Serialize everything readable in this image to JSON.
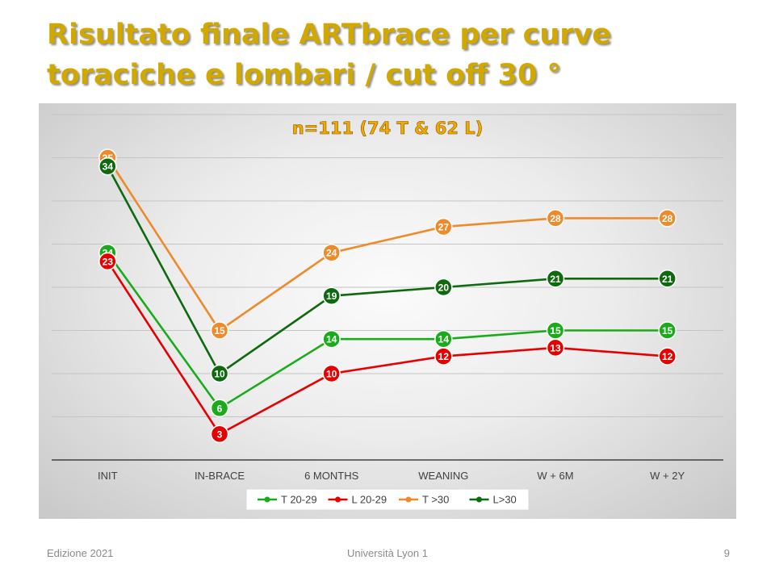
{
  "slide": {
    "title": "Risultato finale ARTbrace per curve toraciche e lombari / cut off 30 °",
    "footer_left": "Edizione 2021",
    "footer_center": "Università Lyon 1",
    "footer_right": "9"
  },
  "chart_data": {
    "type": "line",
    "title": "n=111 (74 T & 62 L)",
    "title_color": "#f5a800",
    "categories": [
      "INIT",
      "IN-BRACE",
      "6 MONTHS",
      "WEANING",
      "W + 6M",
      "W + 2Y"
    ],
    "ylim": [
      0,
      40
    ],
    "grid": true,
    "legend_position": "bottom",
    "data_labels": true,
    "series": [
      {
        "name": "T 20-29",
        "color": "#1aab1a",
        "values": [
          24,
          6,
          14,
          14,
          15,
          15
        ]
      },
      {
        "name": "L 20-29",
        "color": "#e60000",
        "values": [
          23,
          3,
          10,
          12,
          13,
          12
        ]
      },
      {
        "name": "T >30",
        "color": "#ee8a2a",
        "values": [
          35,
          15,
          24,
          27,
          28,
          28
        ]
      },
      {
        "name": "L>30",
        "color": "#0f6a0f",
        "values": [
          34,
          10,
          19,
          20,
          21,
          21
        ]
      }
    ]
  }
}
